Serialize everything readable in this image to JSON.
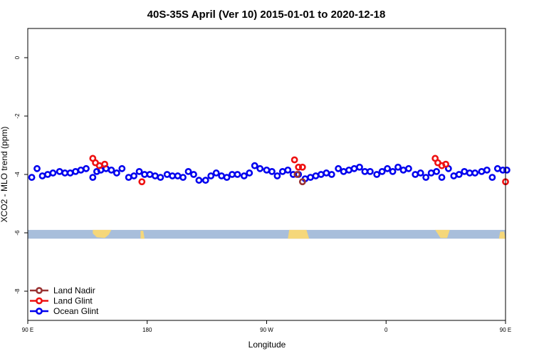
{
  "chart_data": {
    "type": "scatter",
    "title": "40S-35S April (Ver 10)   2015-01-01 to 2020-12-18",
    "xlabel": "Longitude",
    "ylabel": "XCO2 - MLO trend (ppm)",
    "xlim": [
      90,
      450
    ],
    "ylim": [
      -9,
      1
    ],
    "x_ticks": [
      {
        "value": 90,
        "label": "90 E"
      },
      {
        "value": 180,
        "label": "180"
      },
      {
        "value": 270,
        "label": "90 W"
      },
      {
        "value": 360,
        "label": "0"
      },
      {
        "value": 450,
        "label": "90 E"
      },
      {
        "value": 540,
        "label": "180"
      }
    ],
    "y_ticks": [
      {
        "value": 0,
        "label": "0"
      },
      {
        "value": -2,
        "label": "-2"
      },
      {
        "value": -4,
        "label": "-4"
      },
      {
        "value": -6,
        "label": "-6"
      },
      {
        "value": -8,
        "label": "-8"
      }
    ],
    "legend_position": "bottom-left",
    "map_band": {
      "ymin": -6.2,
      "ymax": -5.9,
      "ocean_color": "#a8bedb",
      "land_color": "#f5d77a"
    },
    "series": [
      {
        "name": "Land Nadir",
        "color": "#993333",
        "x": [
          293,
          297
        ],
        "y": [
          -4.0,
          -4.25
        ]
      },
      {
        "name": "Land Glint",
        "color": "#ee1111",
        "x": [
          139,
          141,
          144,
          148,
          176,
          291,
          294,
          297,
          397,
          399,
          402,
          405,
          450
        ],
        "y": [
          -3.45,
          -3.6,
          -3.7,
          -3.65,
          -4.25,
          -3.5,
          -3.75,
          -3.75,
          -3.45,
          -3.6,
          -3.7,
          -3.65,
          -4.25
        ]
      },
      {
        "name": "Ocean Glint",
        "color": "#0000ee",
        "x": [
          93,
          97,
          101,
          105,
          109,
          114,
          118,
          122,
          126,
          130,
          134,
          139,
          142,
          145,
          149,
          153,
          157,
          161,
          166,
          170,
          174,
          178,
          182,
          186,
          190,
          195,
          199,
          203,
          207,
          211,
          215,
          219,
          224,
          228,
          232,
          236,
          240,
          244,
          248,
          253,
          257,
          261,
          265,
          270,
          274,
          278,
          282,
          286,
          290,
          294,
          299,
          303,
          307,
          311,
          315,
          319,
          324,
          328,
          332,
          336,
          340,
          344,
          348,
          353,
          357,
          361,
          365,
          369,
          373,
          377,
          382,
          386,
          390,
          394,
          398,
          402,
          407,
          411,
          415,
          419,
          423,
          427,
          432,
          436,
          440,
          444,
          448,
          451
        ],
        "y": [
          -4.1,
          -3.8,
          -4.05,
          -4.0,
          -3.95,
          -3.9,
          -3.95,
          -3.95,
          -3.9,
          -3.85,
          -3.8,
          -4.1,
          -3.9,
          -3.85,
          -3.8,
          -3.85,
          -3.95,
          -3.8,
          -4.1,
          -4.05,
          -3.9,
          -4.0,
          -4.0,
          -4.05,
          -4.1,
          -4.0,
          -4.05,
          -4.05,
          -4.1,
          -3.9,
          -4.0,
          -4.2,
          -4.2,
          -4.05,
          -3.95,
          -4.05,
          -4.1,
          -4.0,
          -4.0,
          -4.05,
          -3.95,
          -3.7,
          -3.8,
          -3.85,
          -3.9,
          -4.05,
          -3.9,
          -3.85,
          -4.0,
          -4.0,
          -4.15,
          -4.1,
          -4.05,
          -4.0,
          -3.95,
          -4.0,
          -3.8,
          -3.9,
          -3.85,
          -3.8,
          -3.75,
          -3.9,
          -3.9,
          -4.0,
          -3.9,
          -3.8,
          -3.9,
          -3.75,
          -3.85,
          -3.8,
          -4.0,
          -3.95,
          -4.1,
          -3.95,
          -3.9,
          -4.1,
          -3.8,
          -4.05,
          -4.0,
          -3.9,
          -3.95,
          -3.95,
          -3.9,
          -3.85,
          -4.1,
          -3.8,
          -3.85,
          -3.85
        ]
      }
    ]
  }
}
